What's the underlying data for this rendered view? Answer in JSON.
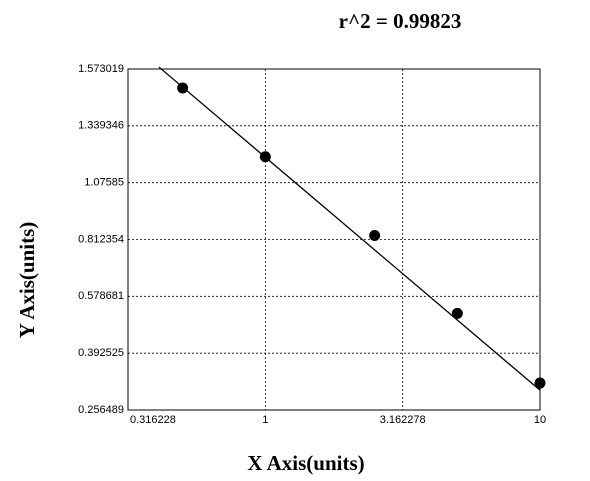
{
  "chart_data": {
    "type": "scatter",
    "title": "r^2 = 0.99823",
    "x_label": "X Axis(units)",
    "y_label": "Y Axis(units)",
    "xscale": "log",
    "grid": true,
    "color": "#000000",
    "xlim": [
      0.316228,
      10
    ],
    "xticks": [
      0.316228,
      1,
      3.162278,
      10
    ],
    "ylim": [
      0.256489,
      1.573019
    ],
    "yticks": [
      0.256489,
      0.392525,
      0.578681,
      0.812354,
      1.07585,
      1.339346,
      1.573019
    ],
    "x": [
      0.5,
      1,
      2.5,
      5,
      10
    ],
    "values": [
      1.495,
      1.196,
      0.831,
      0.523,
      0.321
    ],
    "fit": {
      "x": [
        0.41,
        10
      ],
      "values": [
        1.581,
        0.304
      ]
    }
  }
}
